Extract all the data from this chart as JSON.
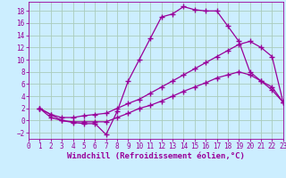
{
  "title": "",
  "xlabel": "Windchill (Refroidissement éolien,°C)",
  "ylabel": "",
  "bg_color": "#cceeff",
  "line_color": "#990099",
  "grid_color": "#aaccbb",
  "xlim": [
    0,
    23
  ],
  "ylim": [
    -3,
    19.5
  ],
  "xticks": [
    0,
    1,
    2,
    3,
    4,
    5,
    6,
    7,
    8,
    9,
    10,
    11,
    12,
    13,
    14,
    15,
    16,
    17,
    18,
    19,
    20,
    21,
    22,
    23
  ],
  "yticks": [
    -2,
    0,
    2,
    4,
    6,
    8,
    10,
    12,
    14,
    16,
    18
  ],
  "curve1_x": [
    1,
    2,
    3,
    4,
    5,
    6,
    7,
    8,
    9,
    10,
    11,
    12,
    13,
    14,
    15,
    16,
    17,
    18,
    19,
    20,
    21,
    22,
    23
  ],
  "curve1_y": [
    2,
    1,
    0,
    -0.3,
    -0.5,
    -0.5,
    -2.3,
    1.5,
    6.5,
    10,
    13.5,
    17,
    17.5,
    18.7,
    18.2,
    18.0,
    18.0,
    15.5,
    13.0,
    8.0,
    6.5,
    5.0,
    3.0
  ],
  "curve2_x": [
    1,
    2,
    3,
    4,
    5,
    6,
    7,
    8,
    9,
    10,
    11,
    12,
    13,
    14,
    15,
    16,
    17,
    18,
    19,
    20,
    21,
    22,
    23
  ],
  "curve2_y": [
    2,
    1.0,
    0.5,
    0.5,
    0.8,
    1.0,
    1.2,
    2.0,
    2.8,
    3.5,
    4.5,
    5.5,
    6.5,
    7.5,
    8.5,
    9.5,
    10.5,
    11.5,
    12.5,
    13.0,
    12.0,
    10.5,
    3.0
  ],
  "curve3_x": [
    1,
    2,
    3,
    4,
    5,
    6,
    7,
    8,
    9,
    10,
    11,
    12,
    13,
    14,
    15,
    16,
    17,
    18,
    19,
    20,
    21,
    22,
    23
  ],
  "curve3_y": [
    2,
    0.5,
    0.0,
    -0.2,
    -0.2,
    -0.2,
    -0.2,
    0.5,
    1.2,
    2.0,
    2.5,
    3.2,
    4.0,
    4.8,
    5.5,
    6.2,
    7.0,
    7.5,
    8.0,
    7.5,
    6.5,
    5.5,
    3.0
  ],
  "marker": "+",
  "markersize": 4,
  "linewidth": 0.9,
  "xlabel_fontsize": 6.5,
  "tick_fontsize": 5.5
}
